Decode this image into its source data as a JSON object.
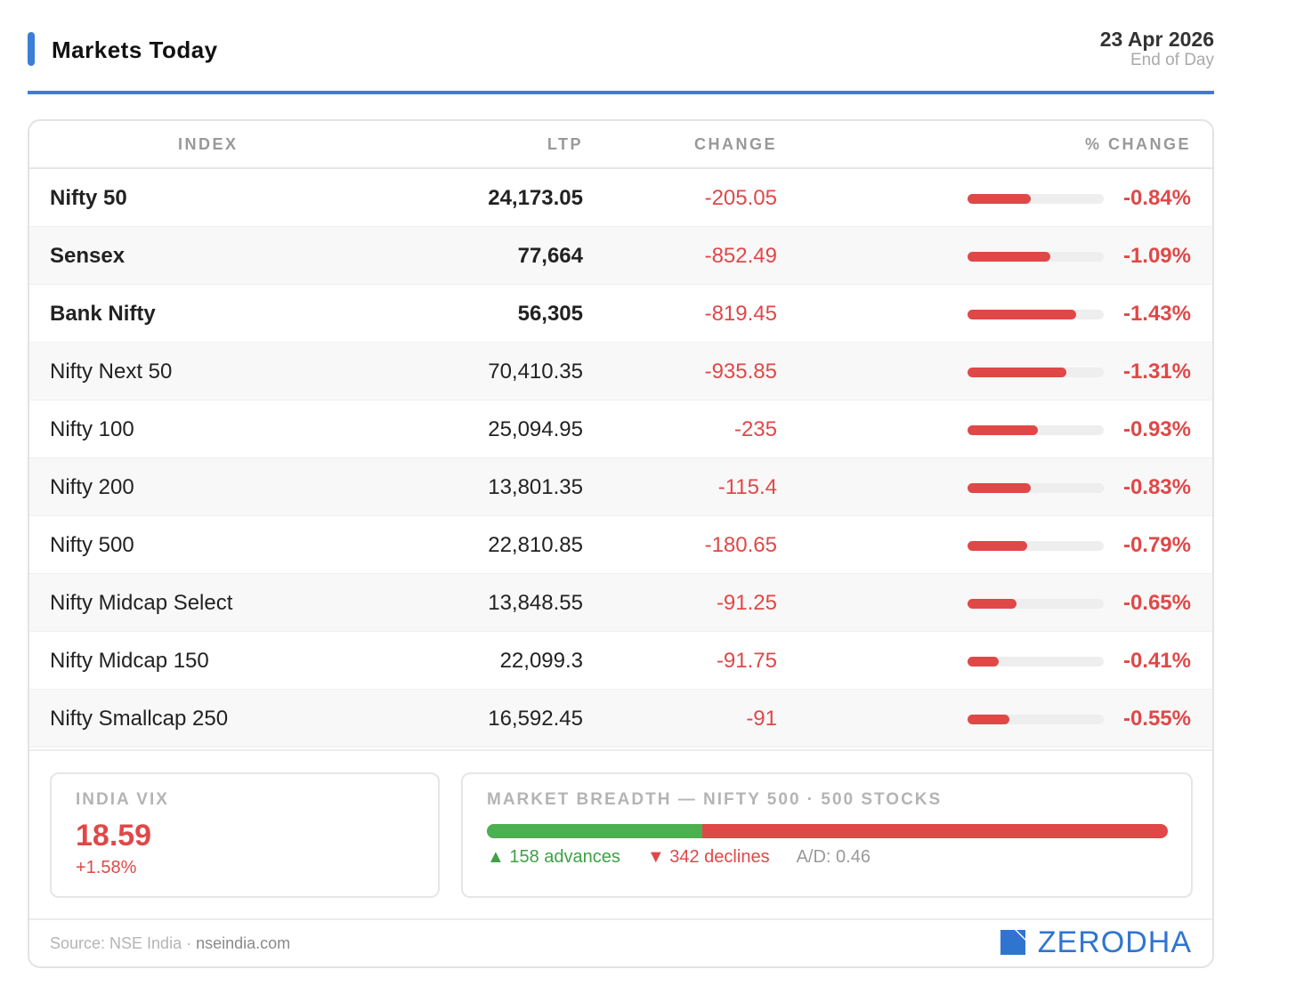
{
  "header": {
    "title": "Markets Today",
    "date": "23 Apr 2026",
    "subtitle": "End of Day"
  },
  "table": {
    "columns": [
      "INDEX",
      "LTP",
      "CHANGE",
      "% CHANGE"
    ],
    "rows": [
      {
        "name": "Nifty 50",
        "ltp": "24,173.05",
        "change": "-205.05",
        "pct": "-0.84%",
        "pct_value": -0.84,
        "bold": true
      },
      {
        "name": "Sensex",
        "ltp": "77,664",
        "change": "-852.49",
        "pct": "-1.09%",
        "pct_value": -1.09,
        "bold": true
      },
      {
        "name": "Bank Nifty",
        "ltp": "56,305",
        "change": "-819.45",
        "pct": "-1.43%",
        "pct_value": -1.43,
        "bold": true
      },
      {
        "name": "Nifty Next 50",
        "ltp": "70,410.35",
        "change": "-935.85",
        "pct": "-1.31%",
        "pct_value": -1.31,
        "bold": false
      },
      {
        "name": "Nifty 100",
        "ltp": "25,094.95",
        "change": "-235",
        "pct": "-0.93%",
        "pct_value": -0.93,
        "bold": false
      },
      {
        "name": "Nifty 200",
        "ltp": "13,801.35",
        "change": "-115.4",
        "pct": "-0.83%",
        "pct_value": -0.83,
        "bold": false
      },
      {
        "name": "Nifty 500",
        "ltp": "22,810.85",
        "change": "-180.65",
        "pct": "-0.79%",
        "pct_value": -0.79,
        "bold": false
      },
      {
        "name": "Nifty Midcap Select",
        "ltp": "13,848.55",
        "change": "-91.25",
        "pct": "-0.65%",
        "pct_value": -0.65,
        "bold": false
      },
      {
        "name": "Nifty Midcap 150",
        "ltp": "22,099.3",
        "change": "-91.75",
        "pct": "-0.41%",
        "pct_value": -0.41,
        "bold": false
      },
      {
        "name": "Nifty Smallcap 250",
        "ltp": "16,592.45",
        "change": "-91",
        "pct": "-0.55%",
        "pct_value": -0.55,
        "bold": false
      }
    ]
  },
  "vix": {
    "label": "INDIA VIX",
    "value": "18.59",
    "change": "+1.58%"
  },
  "breadth": {
    "label": "MARKET BREADTH — NIFTY 500 · 500 STOCKS",
    "advances": 158,
    "declines": 342,
    "advances_text": "▲ 158 advances",
    "declines_text": "▼ 342 declines",
    "ad_ratio": "A/D: 0.46"
  },
  "footer": {
    "source_prefix": "Source: NSE India ·",
    "source_site": "nseindia.com",
    "brand": "ZERODHA"
  },
  "colors": {
    "accent": "#3a7fd5",
    "negative": "#e04848",
    "positive": "#4caf50",
    "brand": "#2f75d0"
  }
}
